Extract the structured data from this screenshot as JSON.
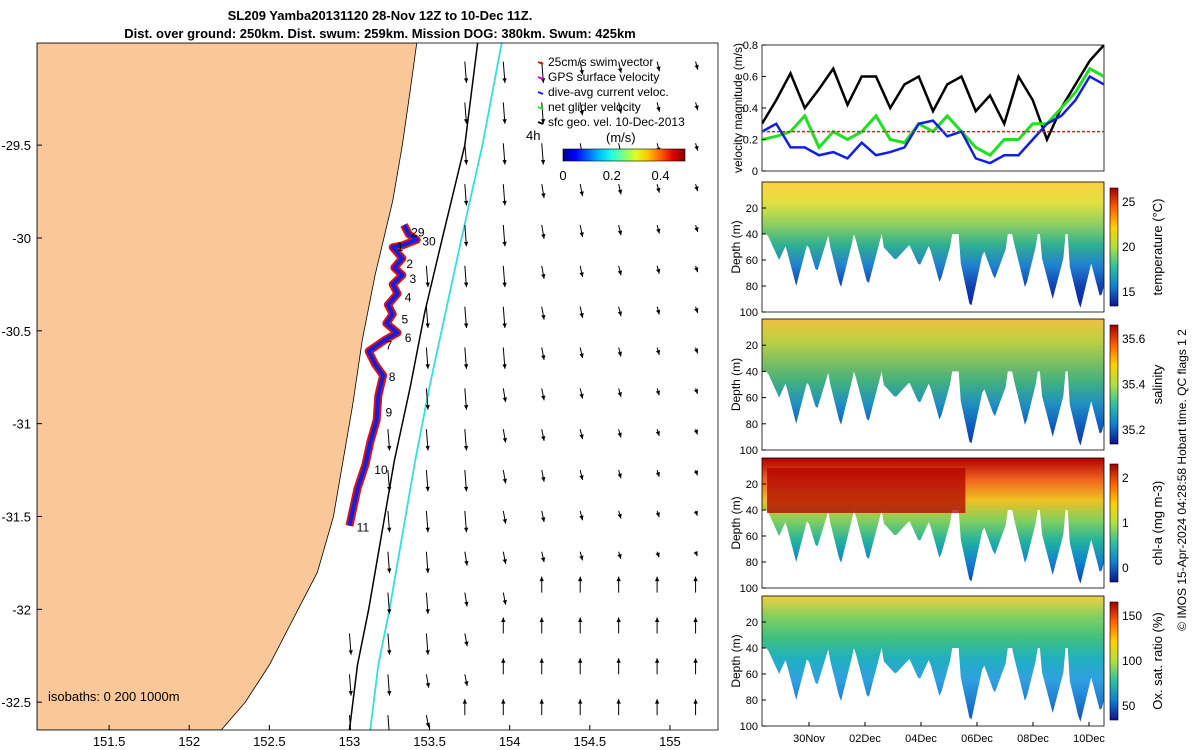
{
  "title_line1": "SL209 Yamba20131120 28-Nov 12Z to 10-Dec 11Z.",
  "title_line2": "Dist. over ground: 250km. Dist. swum: 259km. Mission DOG: 380km. Swum: 425km",
  "credit": "© IMOS 15-Apr-2024 04:28:58 Hobart time. QC flags 1  2",
  "colors": {
    "land": "#fac898",
    "sea": "#ffffff",
    "track_red": "#e01010",
    "track_blue": "#1020e0",
    "isobath_cyan": "#30e0e0",
    "speed_black": "#000000",
    "speed_green": "#20e020",
    "speed_blue": "#1020e0",
    "speed_red": "#e02020"
  },
  "chart_data": [
    {
      "type": "map",
      "legend": {
        "items": [
          "25cm/s swim vector",
          "GPS surface velocity",
          "dive-avg current veloc.",
          "net glider velocity",
          "sfc geo. vel. 10-Dec-2013"
        ],
        "colorbar_label": "(m/s)",
        "colorbar_ticks": [
          "0",
          "0.2",
          "0.4"
        ],
        "colorbar_range": [
          0,
          0.5
        ]
      },
      "x_ticks": [
        "151.5",
        "152",
        "152.5",
        "153",
        "153.5",
        "154",
        "154.5",
        "155"
      ],
      "y_ticks": [
        "-29.5",
        "-30",
        "-30.5",
        "-31",
        "-31.5",
        "-32",
        "-32.5"
      ],
      "xlim": [
        151.05,
        155.3
      ],
      "ylim": [
        -32.65,
        -28.95
      ],
      "isobath_note": "isobaths: 0   200  1000m",
      "arrow_annotation": "4h",
      "track_day_labels": [
        "29",
        "30",
        "1",
        "2",
        "3",
        "4",
        "5",
        "6",
        "7",
        "8",
        "9",
        "10",
        "11"
      ],
      "track_day_points": [
        {
          "label": "29",
          "lon": 153.36,
          "lat": -29.97
        },
        {
          "label": "30",
          "lon": 153.43,
          "lat": -30.02
        },
        {
          "label": "1",
          "lon": 153.27,
          "lat": -30.05
        },
        {
          "label": "2",
          "lon": 153.33,
          "lat": -30.14
        },
        {
          "label": "3",
          "lon": 153.35,
          "lat": -30.22
        },
        {
          "label": "4",
          "lon": 153.32,
          "lat": -30.32
        },
        {
          "label": "5",
          "lon": 153.3,
          "lat": -30.44
        },
        {
          "label": "6",
          "lon": 153.32,
          "lat": -30.54
        },
        {
          "label": "7",
          "lon": 153.2,
          "lat": -30.58
        },
        {
          "label": "8",
          "lon": 153.22,
          "lat": -30.75
        },
        {
          "label": "9",
          "lon": 153.2,
          "lat": -30.94
        },
        {
          "label": "10",
          "lon": 153.13,
          "lat": -31.25
        },
        {
          "label": "11",
          "lon": 153.02,
          "lat": -31.56
        }
      ],
      "track": [
        [
          153.34,
          -29.93
        ],
        [
          153.37,
          -29.98
        ],
        [
          153.42,
          -30.01
        ],
        [
          153.33,
          -30.04
        ],
        [
          153.27,
          -30.05
        ],
        [
          153.33,
          -30.11
        ],
        [
          153.28,
          -30.16
        ],
        [
          153.33,
          -30.2
        ],
        [
          153.27,
          -30.25
        ],
        [
          153.3,
          -30.3
        ],
        [
          153.24,
          -30.36
        ],
        [
          153.27,
          -30.41
        ],
        [
          153.23,
          -30.46
        ],
        [
          153.3,
          -30.51
        ],
        [
          153.22,
          -30.55
        ],
        [
          153.12,
          -30.61
        ],
        [
          153.16,
          -30.68
        ],
        [
          153.21,
          -30.74
        ],
        [
          153.18,
          -30.85
        ],
        [
          153.17,
          -30.98
        ],
        [
          153.13,
          -31.1
        ],
        [
          153.1,
          -31.22
        ],
        [
          153.05,
          -31.35
        ],
        [
          153.02,
          -31.47
        ],
        [
          153.0,
          -31.55
        ]
      ],
      "coastline": [
        [
          153.42,
          -28.95
        ],
        [
          153.38,
          -29.2
        ],
        [
          153.33,
          -29.5
        ],
        [
          153.27,
          -29.8
        ],
        [
          153.16,
          -30.2
        ],
        [
          153.08,
          -30.55
        ],
        [
          153.02,
          -30.9
        ],
        [
          152.98,
          -31.1
        ],
        [
          152.9,
          -31.5
        ],
        [
          152.8,
          -31.8
        ],
        [
          152.65,
          -32.05
        ],
        [
          152.5,
          -32.3
        ],
        [
          152.35,
          -32.5
        ],
        [
          152.2,
          -32.65
        ]
      ],
      "isobath_200": [
        [
          153.8,
          -28.95
        ],
        [
          153.72,
          -29.5
        ],
        [
          153.58,
          -30.0
        ],
        [
          153.47,
          -30.4
        ],
        [
          153.38,
          -30.8
        ],
        [
          153.28,
          -31.2
        ],
        [
          153.2,
          -31.6
        ],
        [
          153.12,
          -32.0
        ],
        [
          153.05,
          -32.3
        ],
        [
          153.0,
          -32.65
        ]
      ],
      "isobath_1000": [
        [
          153.95,
          -28.95
        ],
        [
          153.83,
          -29.5
        ],
        [
          153.7,
          -30.0
        ],
        [
          153.6,
          -30.4
        ],
        [
          153.5,
          -30.8
        ],
        [
          153.41,
          -31.2
        ],
        [
          153.33,
          -31.6
        ],
        [
          153.25,
          -32.0
        ],
        [
          153.18,
          -32.3
        ],
        [
          153.13,
          -32.65
        ]
      ]
    },
    {
      "type": "line",
      "ylabel": "velocity magnitude (m/s)",
      "ylim": [
        0,
        0.8
      ],
      "y_ticks": [
        "0",
        "0.2",
        "0.4",
        "0.6",
        "0.8"
      ],
      "xlim_days": [
        28.5,
        40.5
      ],
      "series": [
        {
          "color": "black",
          "values": [
            [
              28.5,
              0.3
            ],
            [
              29,
              0.45
            ],
            [
              29.5,
              0.62
            ],
            [
              30,
              0.4
            ],
            [
              30.5,
              0.52
            ],
            [
              31,
              0.65
            ],
            [
              31.5,
              0.42
            ],
            [
              32,
              0.6
            ],
            [
              32.5,
              0.6
            ],
            [
              33,
              0.4
            ],
            [
              33.5,
              0.55
            ],
            [
              34,
              0.6
            ],
            [
              34.5,
              0.38
            ],
            [
              35,
              0.55
            ],
            [
              35.5,
              0.6
            ],
            [
              36,
              0.38
            ],
            [
              36.5,
              0.48
            ],
            [
              37,
              0.3
            ],
            [
              37.5,
              0.6
            ],
            [
              38,
              0.45
            ],
            [
              38.5,
              0.2
            ],
            [
              39,
              0.4
            ],
            [
              39.5,
              0.55
            ],
            [
              40,
              0.7
            ],
            [
              40.5,
              0.8
            ]
          ]
        },
        {
          "color": "green",
          "values": [
            [
              28.5,
              0.2
            ],
            [
              29,
              0.22
            ],
            [
              29.5,
              0.25
            ],
            [
              30,
              0.35
            ],
            [
              30.5,
              0.15
            ],
            [
              31,
              0.25
            ],
            [
              31.5,
              0.2
            ],
            [
              32,
              0.25
            ],
            [
              32.5,
              0.35
            ],
            [
              33,
              0.2
            ],
            [
              33.5,
              0.18
            ],
            [
              34,
              0.3
            ],
            [
              34.5,
              0.25
            ],
            [
              35,
              0.35
            ],
            [
              35.5,
              0.25
            ],
            [
              36,
              0.15
            ],
            [
              36.5,
              0.1
            ],
            [
              37,
              0.2
            ],
            [
              37.5,
              0.2
            ],
            [
              38,
              0.3
            ],
            [
              38.5,
              0.3
            ],
            [
              39,
              0.4
            ],
            [
              39.5,
              0.5
            ],
            [
              40,
              0.65
            ],
            [
              40.5,
              0.6
            ]
          ]
        },
        {
          "color": "blue",
          "values": [
            [
              28.5,
              0.25
            ],
            [
              29,
              0.3
            ],
            [
              29.5,
              0.15
            ],
            [
              30,
              0.15
            ],
            [
              30.5,
              0.1
            ],
            [
              31,
              0.12
            ],
            [
              31.5,
              0.08
            ],
            [
              32,
              0.18
            ],
            [
              32.5,
              0.1
            ],
            [
              33,
              0.12
            ],
            [
              33.5,
              0.15
            ],
            [
              34,
              0.3
            ],
            [
              34.5,
              0.32
            ],
            [
              35,
              0.22
            ],
            [
              35.5,
              0.25
            ],
            [
              36,
              0.08
            ],
            [
              36.5,
              0.05
            ],
            [
              37,
              0.1
            ],
            [
              37.5,
              0.1
            ],
            [
              38,
              0.2
            ],
            [
              38.5,
              0.3
            ],
            [
              39,
              0.35
            ],
            [
              39.5,
              0.45
            ],
            [
              40,
              0.6
            ],
            [
              40.5,
              0.55
            ]
          ]
        },
        {
          "color": "red",
          "values": [
            [
              28.5,
              0.25
            ],
            [
              40.5,
              0.25
            ]
          ]
        }
      ]
    },
    {
      "type": "heatmap",
      "ylabel": "Depth (m)",
      "colorbar_label": "temperature (°C)",
      "colorbar_ticks": [
        "25",
        "20",
        "15"
      ],
      "y_ticks": [
        "20",
        "40",
        "60",
        "80",
        "100"
      ],
      "ylim": [
        0,
        100
      ]
    },
    {
      "type": "heatmap",
      "ylabel": "Depth (m)",
      "colorbar_label": "salinity",
      "colorbar_ticks": [
        "35.6",
        "35.4",
        "35.2"
      ],
      "y_ticks": [
        "20",
        "40",
        "60",
        "80",
        "100"
      ],
      "ylim": [
        0,
        100
      ]
    },
    {
      "type": "heatmap",
      "ylabel": "Depth (m)",
      "colorbar_label": "chl-a (mg m-3)",
      "colorbar_ticks": [
        "2",
        "1",
        "0"
      ],
      "y_ticks": [
        "20",
        "40",
        "60",
        "80",
        "100"
      ],
      "ylim": [
        0,
        100
      ]
    },
    {
      "type": "heatmap",
      "ylabel": "Depth (m)",
      "colorbar_label": "Ox. sat. ratio (%)",
      "colorbar_ticks": [
        "150",
        "100",
        "50"
      ],
      "y_ticks": [
        "20",
        "40",
        "60",
        "80",
        "100"
      ],
      "ylim": [
        0,
        100
      ],
      "x_ticks": [
        "30Nov",
        "02Dec",
        "04Dec",
        "06Dec",
        "08Dec",
        "10Dec"
      ]
    }
  ]
}
